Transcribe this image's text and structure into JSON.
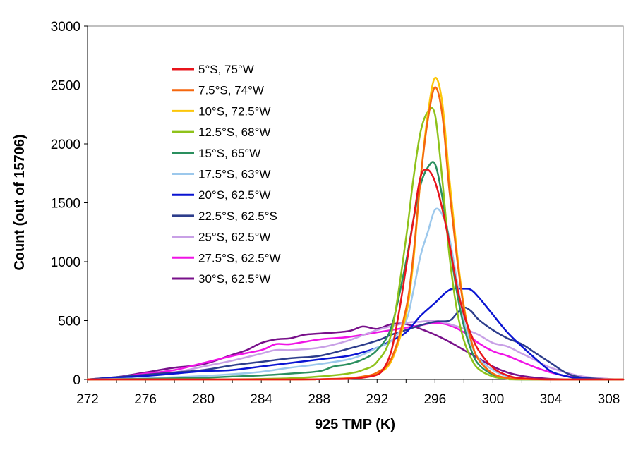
{
  "chart_data": {
    "type": "line",
    "title": "",
    "xlabel": "925 TMP (K)",
    "ylabel": "Count (out of 15706)",
    "xlim": [
      272,
      309
    ],
    "ylim": [
      0,
      3000
    ],
    "xticks": [
      272,
      276,
      280,
      284,
      288,
      292,
      296,
      300,
      304,
      308
    ],
    "yticks": [
      0,
      500,
      1000,
      1500,
      2000,
      2500,
      3000
    ],
    "xtick_labels": [
      "272",
      "276",
      "280",
      "284",
      "288",
      "292",
      "296",
      "300",
      "304",
      "308"
    ],
    "ytick_labels": [
      "0",
      "500",
      "1000",
      "1500",
      "2000",
      "2500",
      "3000"
    ],
    "legend_position": "top-left (inside plot)",
    "series": [
      {
        "name": "5°S, 75°W",
        "color": "#e8141b",
        "x": [
          272,
          286,
          288,
          290,
          291,
          292,
          292.5,
          293,
          293.5,
          294,
          294.5,
          295,
          295.5,
          296,
          296.5,
          297,
          297.5,
          298,
          298.5,
          299,
          300,
          301,
          302,
          304
        ],
        "y": [
          0,
          0,
          2,
          5,
          15,
          40,
          100,
          250,
          560,
          950,
          1350,
          1720,
          1780,
          1680,
          1450,
          1150,
          800,
          550,
          380,
          250,
          100,
          35,
          10,
          0
        ]
      },
      {
        "name": "7.5°S, 74°W",
        "color": "#f5670e",
        "x": [
          272,
          286,
          288,
          290,
          291,
          292,
          293,
          294,
          294.5,
          295,
          295.5,
          296,
          296.5,
          297,
          297.5,
          298,
          298.5,
          299,
          300,
          301,
          302,
          304
        ],
        "y": [
          0,
          0,
          2,
          10,
          25,
          60,
          180,
          600,
          1050,
          1700,
          2200,
          2480,
          2250,
          1600,
          1050,
          600,
          330,
          170,
          50,
          12,
          3,
          0
        ]
      },
      {
        "name": "10°S, 72.5°W",
        "color": "#fcc60a",
        "x": [
          272,
          286,
          288,
          290,
          291,
          292,
          293,
          294,
          294.5,
          295,
          295.5,
          296,
          296.5,
          297,
          297.5,
          298,
          298.5,
          299,
          300,
          301,
          302,
          304
        ],
        "y": [
          0,
          0,
          2,
          8,
          20,
          50,
          160,
          550,
          1000,
          1700,
          2250,
          2560,
          2350,
          1700,
          1100,
          620,
          330,
          170,
          50,
          12,
          3,
          0
        ]
      },
      {
        "name": "12.5°S, 68°W",
        "color": "#8ec21a",
        "x": [
          272,
          282,
          284,
          286,
          288,
          290,
          291,
          292,
          293,
          294,
          294.5,
          295,
          295.5,
          296,
          296.5,
          297,
          297.5,
          298,
          298.5,
          299,
          300,
          301,
          302
        ],
        "y": [
          0,
          2,
          5,
          10,
          25,
          50,
          80,
          150,
          400,
          1200,
          1700,
          2100,
          2270,
          2250,
          1700,
          1050,
          600,
          330,
          180,
          90,
          25,
          5,
          0
        ]
      },
      {
        "name": "15°S, 65°W",
        "color": "#2a8f5e",
        "x": [
          272,
          276,
          280,
          282,
          284,
          286,
          288,
          289,
          290,
          291,
          292,
          293,
          294,
          294.5,
          295,
          295.5,
          296,
          296.5,
          297,
          297.5,
          298,
          298.5,
          299,
          300,
          301,
          302
        ],
        "y": [
          0,
          5,
          15,
          25,
          35,
          50,
          70,
          110,
          130,
          170,
          250,
          450,
          1000,
          1350,
          1650,
          1800,
          1830,
          1550,
          1150,
          750,
          450,
          250,
          130,
          40,
          10,
          0
        ]
      },
      {
        "name": "17.5°S, 63°W",
        "color": "#9cc8ec",
        "x": [
          272,
          276,
          280,
          282,
          284,
          286,
          288,
          290,
          291,
          292,
          293,
          294,
          294.5,
          295,
          295.5,
          296,
          296.5,
          297,
          297.5,
          298,
          298.5,
          299,
          300,
          301,
          302,
          304
        ],
        "y": [
          0,
          10,
          30,
          45,
          65,
          100,
          130,
          170,
          210,
          270,
          330,
          500,
          750,
          1050,
          1250,
          1440,
          1400,
          1200,
          850,
          500,
          300,
          180,
          80,
          25,
          8,
          0
        ]
      },
      {
        "name": "20°S, 62.5°W",
        "color": "#0a14d2",
        "x": [
          272,
          276,
          278,
          280,
          282,
          284,
          286,
          288,
          290,
          291,
          292,
          293,
          294,
          295,
          296,
          297,
          298,
          298.5,
          299,
          300,
          301,
          302,
          303,
          304,
          305,
          306,
          308
        ],
        "y": [
          0,
          30,
          50,
          70,
          80,
          110,
          140,
          170,
          200,
          230,
          270,
          330,
          400,
          540,
          650,
          760,
          770,
          760,
          700,
          550,
          400,
          280,
          170,
          70,
          30,
          10,
          0
        ]
      },
      {
        "name": "22.5°S, 62.5°S",
        "color": "#2d3d8c",
        "x": [
          272,
          276,
          278,
          280,
          282,
          284,
          286,
          288,
          290,
          292,
          293,
          294,
          295,
          296,
          297,
          297.5,
          298,
          298.5,
          299,
          300,
          301,
          302,
          303,
          304,
          305,
          306,
          308
        ],
        "y": [
          0,
          40,
          60,
          80,
          120,
          150,
          180,
          200,
          260,
          330,
          380,
          420,
          460,
          490,
          500,
          560,
          610,
          580,
          510,
          420,
          350,
          300,
          220,
          140,
          60,
          20,
          0
        ]
      },
      {
        "name": "25°S, 62.5°W",
        "color": "#c8a0e6",
        "x": [
          272,
          276,
          278,
          280,
          282,
          284,
          285,
          286,
          288,
          290,
          292,
          294,
          295,
          296,
          297,
          298,
          299,
          300,
          301,
          302,
          303,
          304,
          306,
          308
        ],
        "y": [
          0,
          40,
          60,
          110,
          160,
          220,
          250,
          250,
          270,
          330,
          420,
          480,
          490,
          500,
          470,
          430,
          380,
          310,
          280,
          220,
          160,
          100,
          30,
          5
        ]
      },
      {
        "name": "27.5°S, 62.5°W",
        "color": "#f014e6",
        "x": [
          272,
          274,
          276,
          278,
          280,
          282,
          284,
          285,
          286,
          288,
          290,
          292,
          294,
          295,
          296,
          297,
          298,
          299,
          300,
          301,
          302,
          303,
          304,
          305,
          306,
          308
        ],
        "y": [
          0,
          20,
          50,
          80,
          140,
          200,
          250,
          300,
          300,
          340,
          360,
          400,
          440,
          460,
          480,
          460,
          400,
          310,
          240,
          200,
          150,
          100,
          60,
          30,
          15,
          0
        ]
      },
      {
        "name": "30°S, 62.5°W",
        "color": "#78108a",
        "x": [
          272,
          274,
          276,
          278,
          280,
          282,
          283,
          284,
          285,
          286,
          287,
          288,
          290,
          291,
          292,
          293,
          294,
          295,
          296,
          297,
          298,
          299,
          300,
          301,
          302,
          303,
          304,
          306
        ],
        "y": [
          0,
          20,
          60,
          100,
          130,
          210,
          250,
          310,
          340,
          350,
          380,
          390,
          410,
          450,
          430,
          470,
          470,
          430,
          380,
          320,
          250,
          180,
          110,
          60,
          30,
          15,
          5,
          0
        ]
      }
    ]
  }
}
